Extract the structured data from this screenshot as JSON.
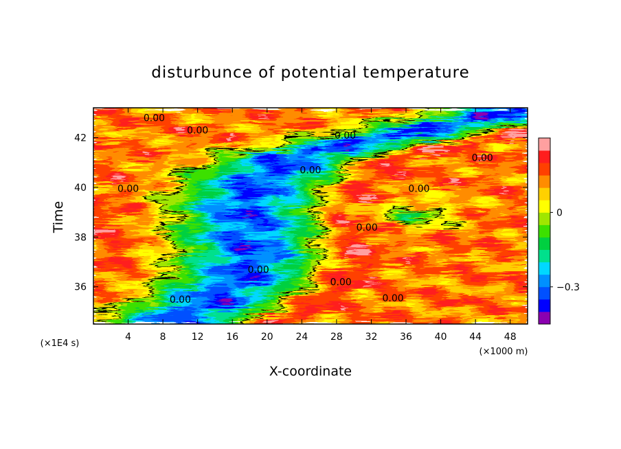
{
  "chart_data": {
    "type": "heatmap",
    "title": "disturbunce of potential temperature",
    "xlabel": "X-coordinate",
    "ylabel": "Time",
    "x_unit_label": "(×1000 m)",
    "y_unit_label": "(×1E4 s)",
    "xlim": [
      0,
      50
    ],
    "ylim": [
      34.5,
      43.2
    ],
    "x_ticks": [
      4,
      8,
      12,
      16,
      20,
      24,
      28,
      32,
      36,
      40,
      44,
      48
    ],
    "y_ticks": [
      36,
      38,
      40,
      42
    ],
    "colorbar": {
      "ticks": [
        {
          "value": 0,
          "label": "0"
        },
        {
          "value": -0.3,
          "label": "−0.3"
        }
      ],
      "levels": [
        -0.45,
        -0.4,
        -0.35,
        -0.3,
        -0.25,
        -0.2,
        -0.15,
        -0.1,
        -0.05,
        0,
        0.05,
        0.1,
        0.15,
        0.2,
        0.25
      ],
      "colors": [
        "#8b00b0",
        "#0000ff",
        "#0050ff",
        "#0090ff",
        "#00d8ff",
        "#00e08c",
        "#00d040",
        "#3ce000",
        "#a0e600",
        "#ffff00",
        "#ffd000",
        "#ff8c00",
        "#ff4000",
        "#ff1e1e",
        "#ffa0a0"
      ]
    },
    "contour_labels": [
      {
        "x": 7.0,
        "y": 42.8,
        "text": "0.00"
      },
      {
        "x": 12.0,
        "y": 42.3,
        "text": "0.00"
      },
      {
        "x": 29.0,
        "y": 42.1,
        "text": "0.00"
      },
      {
        "x": 44.8,
        "y": 41.2,
        "text": "0.00"
      },
      {
        "x": 25.0,
        "y": 40.7,
        "text": "0.00"
      },
      {
        "x": 4.0,
        "y": 39.95,
        "text": "0.00"
      },
      {
        "x": 37.5,
        "y": 39.95,
        "text": "0.00"
      },
      {
        "x": 31.5,
        "y": 38.4,
        "text": "0.00"
      },
      {
        "x": 19.0,
        "y": 36.7,
        "text": "0.00"
      },
      {
        "x": 28.5,
        "y": 36.2,
        "text": "0.00"
      },
      {
        "x": 10.0,
        "y": 35.5,
        "text": "0.00"
      },
      {
        "x": 34.5,
        "y": 35.55,
        "text": "0.00"
      }
    ]
  }
}
